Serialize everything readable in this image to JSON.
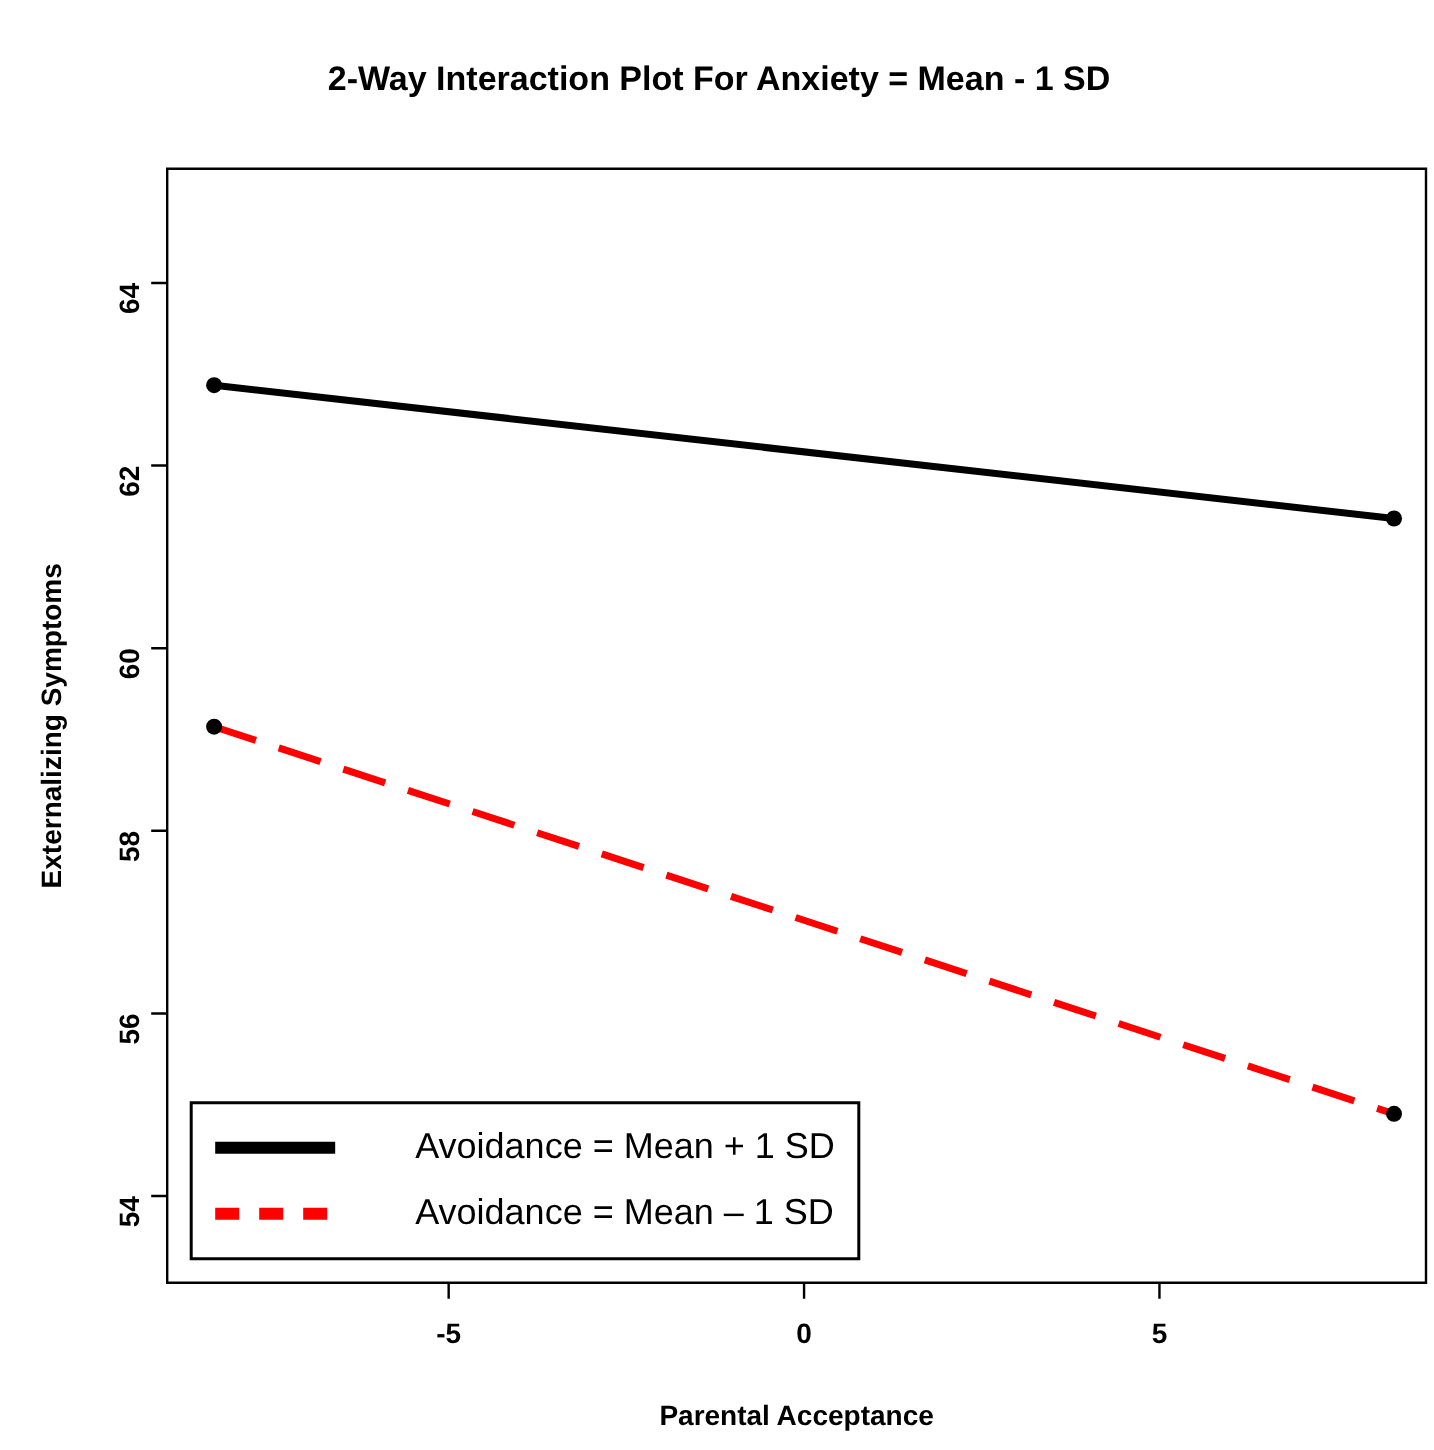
{
  "chart_data": {
    "type": "line",
    "title": "2-Way Interaction Plot For Anxiety = Mean - 1 SD",
    "xlabel": "Parental Acceptance",
    "ylabel": "Externalizing Symptoms",
    "x": [
      -8.3,
      8.3
    ],
    "series": [
      {
        "name": "Avoidance = Mean + 1 SD",
        "color": "#000000",
        "values": [
          62.88,
          61.42
        ],
        "line_style": "solid"
      },
      {
        "name": "Avoidance = Mean – 1 SD",
        "color": "#ff0000",
        "values": [
          59.14,
          54.9
        ],
        "line_style": "dashed"
      }
    ],
    "xlim": [
      -8.96,
      8.75
    ],
    "xticks": [
      -5,
      0,
      5
    ],
    "ylim": [
      53.05,
      65.25
    ],
    "yticks": [
      54,
      56,
      58,
      60,
      62,
      64
    ],
    "grid": false,
    "legend": "bottom left",
    "marker": "circle"
  }
}
